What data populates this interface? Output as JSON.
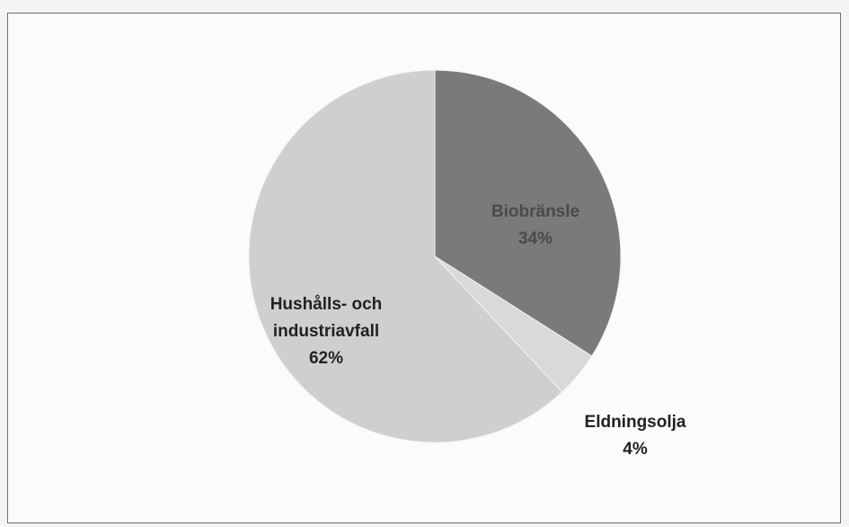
{
  "chart_data": {
    "type": "pie",
    "title": "",
    "slices": [
      {
        "label": "Biobränsle",
        "value": 34,
        "percent_label": "34%",
        "color": "#7a7a7a",
        "label_color": "#4a4a4a"
      },
      {
        "label": "Eldningsolja",
        "value": 4,
        "percent_label": "4%",
        "color": "#d9d9d9",
        "label_color": "#222222"
      },
      {
        "label": "Hushålls- och industriavfall",
        "value": 62,
        "percent_label": "62%",
        "color": "#cfcfcf",
        "label_color": "#222222"
      }
    ],
    "start_angle_deg": 0,
    "direction": "clockwise"
  }
}
